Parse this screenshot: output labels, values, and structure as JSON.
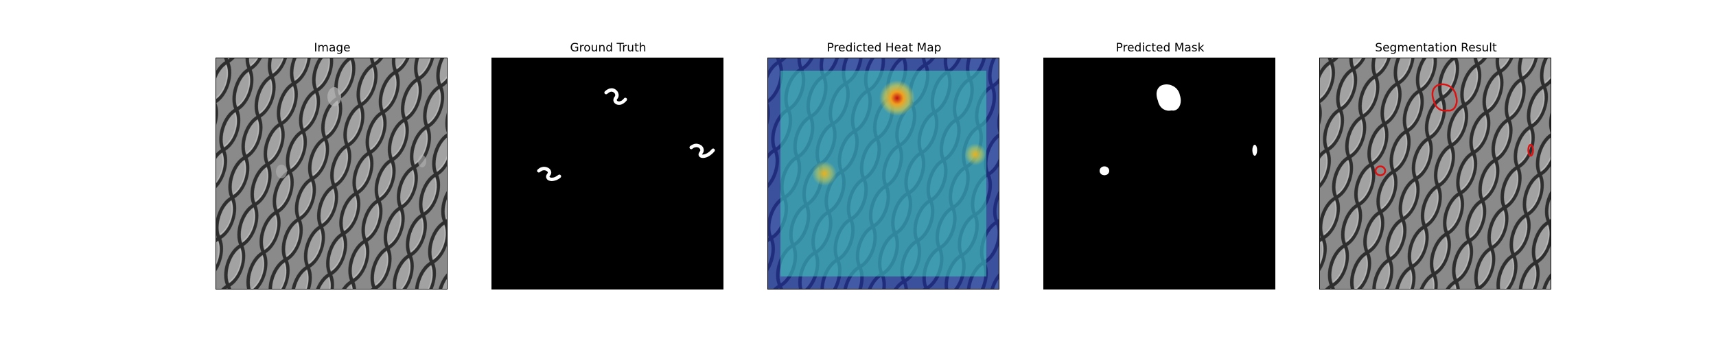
{
  "panels": [
    {
      "title": "Image",
      "content": "textured-mesh-image"
    },
    {
      "title": "Ground Truth",
      "content": "ground-truth-mask"
    },
    {
      "title": "Predicted Heat Map",
      "content": "heat-map-overlay"
    },
    {
      "title": "Predicted Mask",
      "content": "binary-mask"
    },
    {
      "title": "Segmentation Result",
      "content": "contour-overlay"
    }
  ],
  "colors": {
    "background": "#ffffff",
    "mask_fg": "#ffffff",
    "mask_bg": "#000000",
    "heat_low": "#2a2aa0",
    "heat_mid": "#39c0b0",
    "heat_high": "#e8c020",
    "contour": "#e01010"
  }
}
